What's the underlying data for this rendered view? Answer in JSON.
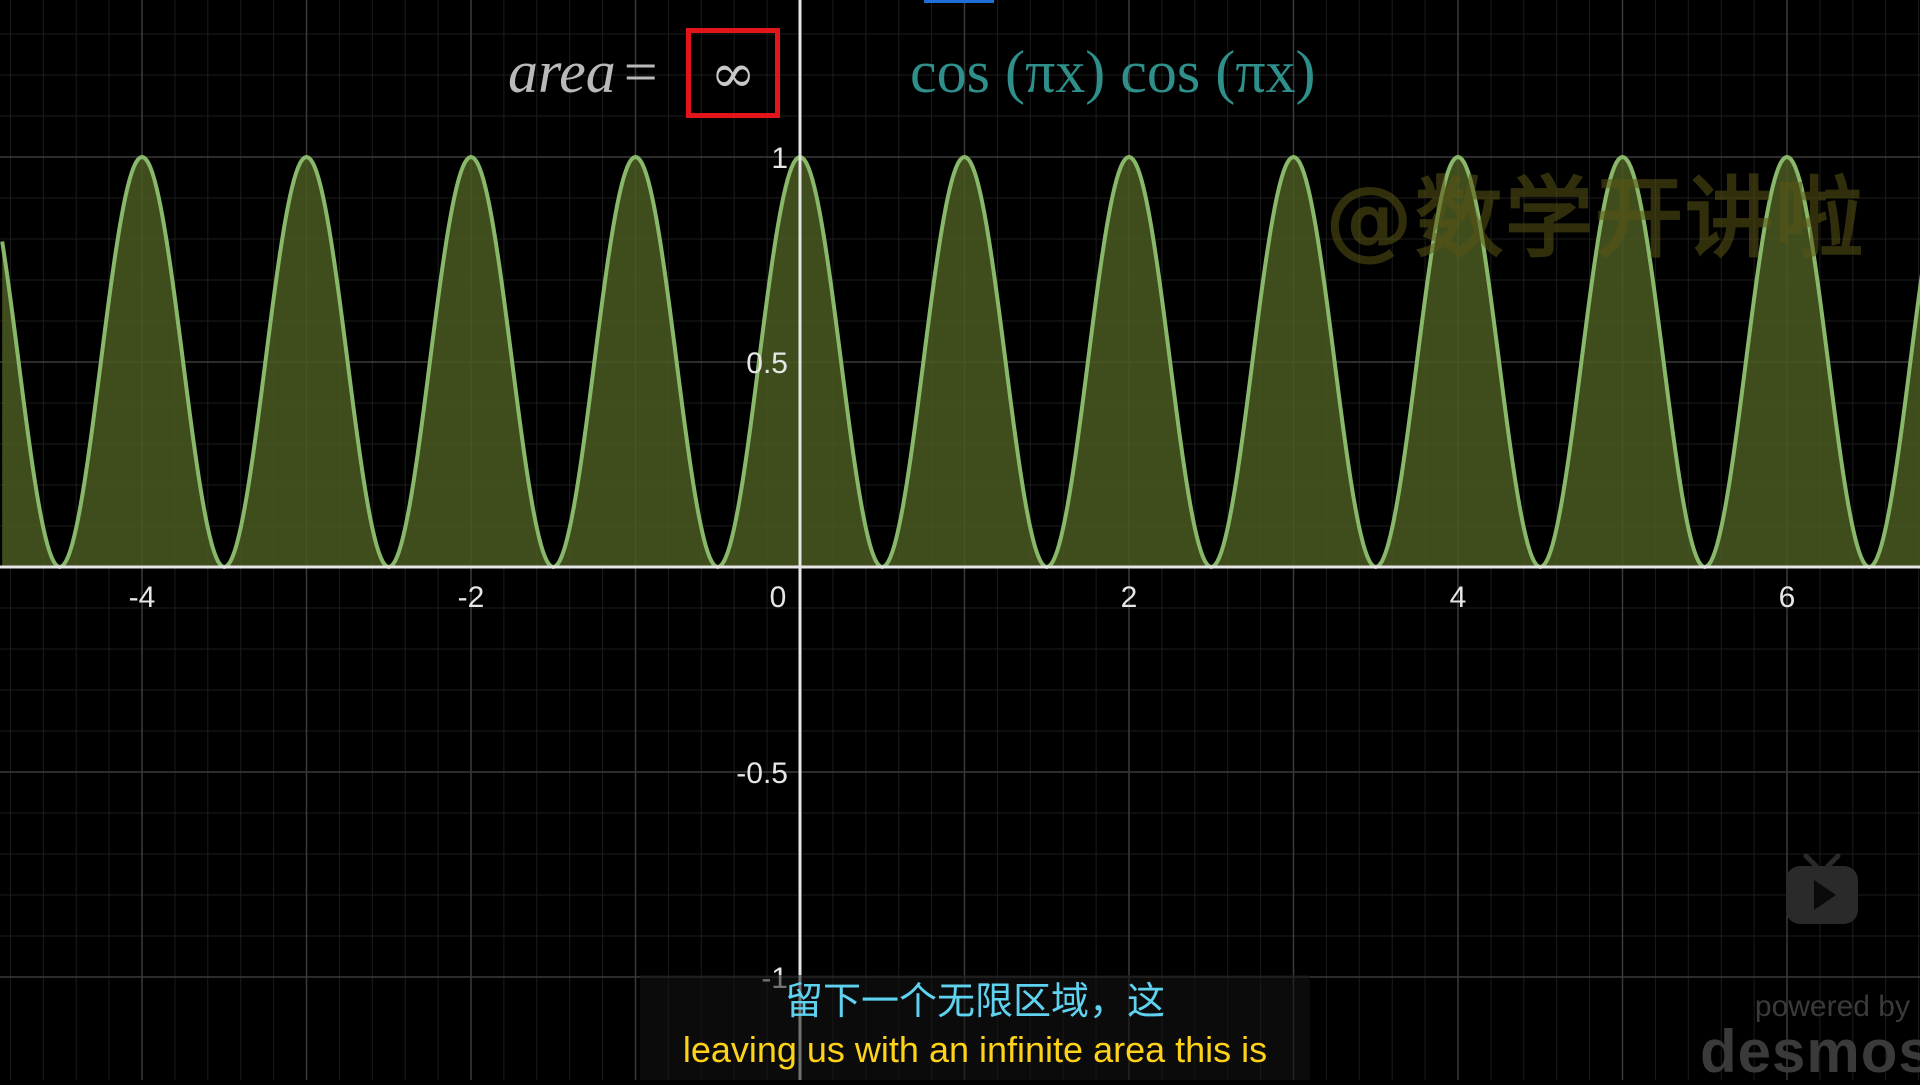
{
  "chart_data": {
    "type": "area",
    "title": "",
    "xlabel": "",
    "ylabel": "",
    "function": "cos(πx)cos(πx)",
    "xlim": [
      -4.85,
      6.85
    ],
    "ylim": [
      -1.05,
      1.0
    ],
    "xticks": [
      -4,
      -2,
      0,
      2,
      4,
      6
    ],
    "xtick_labels": [
      "-4",
      "-2",
      "0",
      "2",
      "4",
      "6"
    ],
    "yticks": [
      1,
      0.5,
      -0.5,
      -1
    ],
    "ytick_labels": [
      "1",
      "0.5",
      "-0.5",
      "-1"
    ],
    "grid": true,
    "series": [
      {
        "name": "cos (πx) cos (πx)",
        "color": "#8ab86a",
        "fill": "#4a5a22",
        "samples_per_unit": 80
      }
    ]
  },
  "annotation": {
    "area_label": "area",
    "equals": "=",
    "value": "∞",
    "formula": "cos (πx) cos (πx)"
  },
  "watermark": "@数学开讲啦",
  "subtitles": {
    "zh": "留下一个无限区域，这",
    "en": "leaving us with an infinite area this is"
  },
  "branding": {
    "powered_by": "powered by",
    "name": "desmos"
  },
  "colors": {
    "background": "#000000",
    "grid": "#3a3a3a",
    "axis": "#e6e6e6",
    "highlight_box": "#e4141b",
    "formula": "#2f8f8a",
    "subtitle_zh": "#5fd2f0",
    "subtitle_en": "#ffd21a"
  },
  "icons": [
    "play-icon"
  ]
}
